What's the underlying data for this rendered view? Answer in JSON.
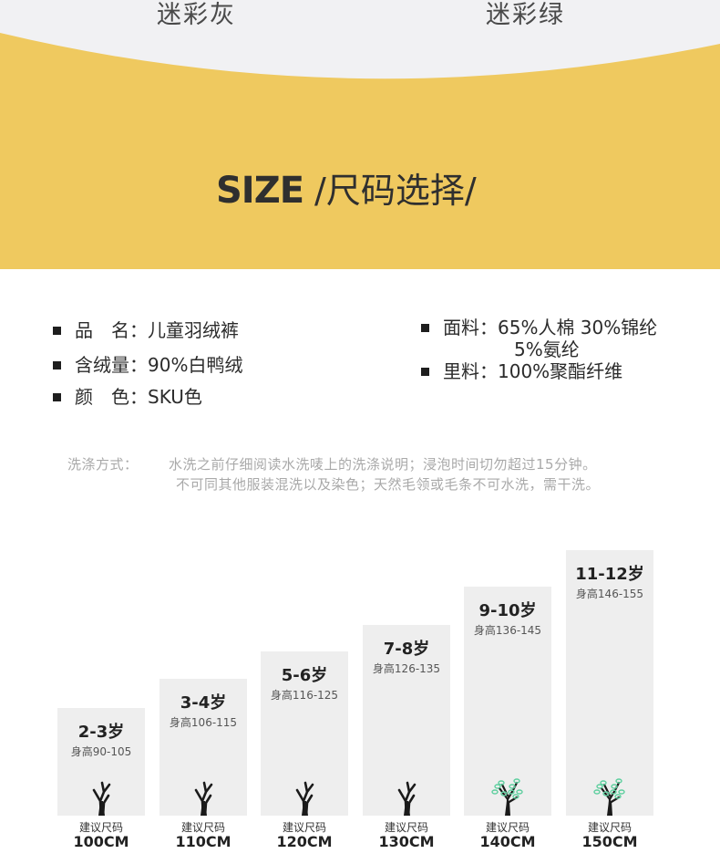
{
  "header": {
    "color_names": [
      "迷彩灰",
      "迷彩绿"
    ],
    "title_en": "SIZE",
    "title_zh": "/尺码选择/"
  },
  "colors": {
    "band": "#efc95f",
    "column": "#eeeeee",
    "leaf": "#5fcf9f",
    "trunk": "#1a1a1a"
  },
  "specs": {
    "name": "品　名：儿童羽绒裤",
    "down": "含绒量：90%白鸭绒",
    "color": "颜　色：SKU色",
    "fabric": "面料：65%人棉 30%锦纶",
    "fabric_cont": "5%氨纶",
    "lining": "里料：100%聚酯纤维"
  },
  "washing": {
    "label": "洗涤方式：",
    "line1": "水洗之前仔细阅读水洗唛上的洗涤说明；浸泡时间切勿超过15分钟。",
    "line2": "不可同其他服装混洗以及染色；天然毛领或毛条不可水洗，需干洗。"
  },
  "sizes": [
    {
      "age": "2-3岁",
      "height": "身高90-105",
      "rec_label": "建议尺码",
      "rec_size": "100CM",
      "tree": "bare"
    },
    {
      "age": "3-4岁",
      "height": "身高106-115",
      "rec_label": "建议尺码",
      "rec_size": "110CM",
      "tree": "bare"
    },
    {
      "age": "5-6岁",
      "height": "身高116-125",
      "rec_label": "建议尺码",
      "rec_size": "120CM",
      "tree": "bare"
    },
    {
      "age": "7-8岁",
      "height": "身高126-135",
      "rec_label": "建议尺码",
      "rec_size": "130CM",
      "tree": "bare"
    },
    {
      "age": "9-10岁",
      "height": "身高136-145",
      "rec_label": "建议尺码",
      "rec_size": "140CM",
      "tree": "leafy"
    },
    {
      "age": "11-12岁",
      "height": "身高146-155",
      "rec_label": "建议尺码",
      "rec_size": "150CM",
      "tree": "leafy"
    }
  ]
}
